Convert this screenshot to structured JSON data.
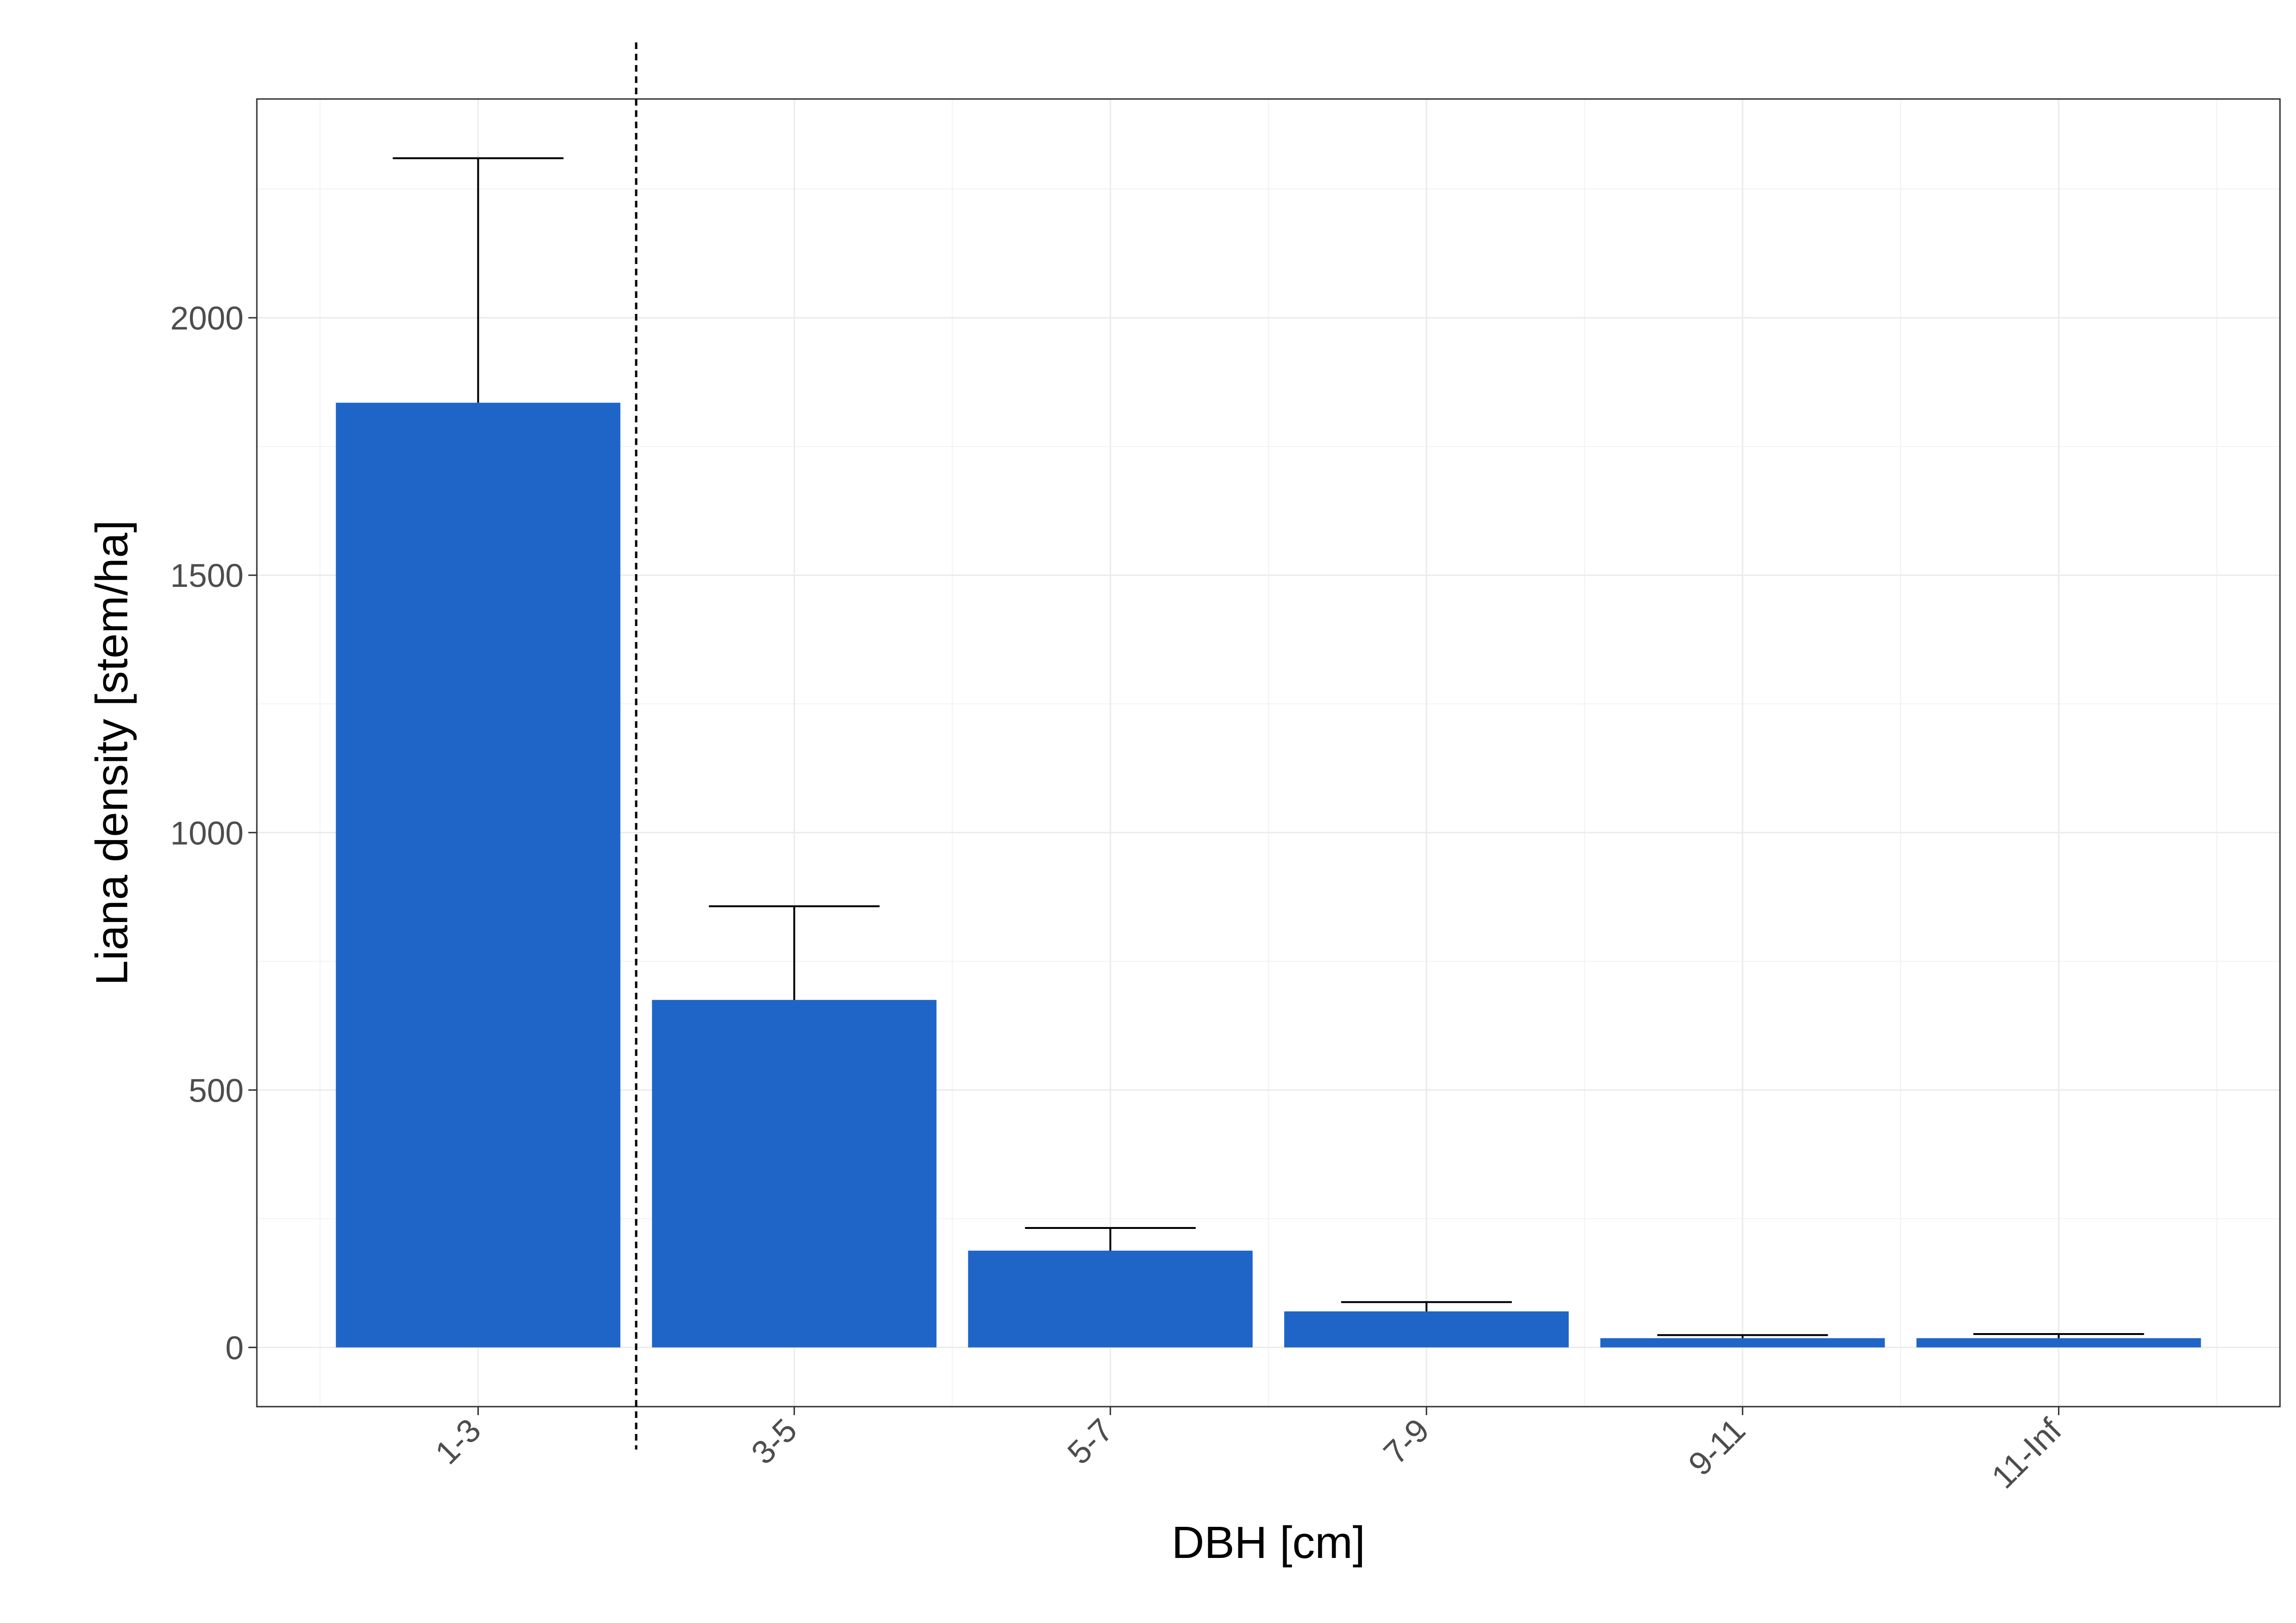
{
  "chart_data": {
    "type": "bar",
    "title": "",
    "xlabel": "DBH [cm]",
    "ylabel": "Liana density [stem/ha]",
    "categories": [
      "1-3",
      "3-5",
      "5-7",
      "7-9",
      "9-11",
      "11-Inf"
    ],
    "values": [
      1835,
      675,
      188,
      70,
      18,
      18
    ],
    "error_upper": [
      2310,
      857,
      232,
      88,
      24,
      26
    ],
    "ylim": [
      -115,
      2425
    ],
    "yticks": [
      0,
      500,
      1000,
      1500,
      2000
    ],
    "ytick_labels": [
      "0",
      "500",
      "1000",
      "1500",
      "2000"
    ],
    "reference_line": {
      "between_categories": [
        "1-3",
        "3-5"
      ],
      "style": "dashed"
    },
    "grid": true,
    "legend": "none",
    "bar_color": "#1f65c8"
  }
}
